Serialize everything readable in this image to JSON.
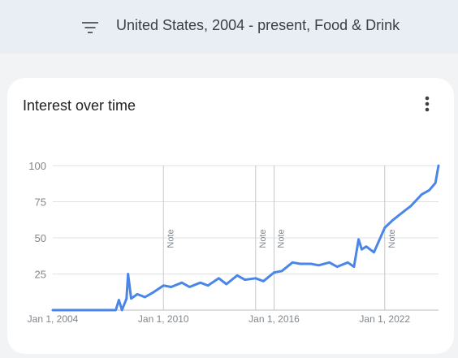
{
  "header": {
    "filter_text": "United States, 2004 - present, Food & Drink",
    "filter_icon": "filter-list-icon"
  },
  "card": {
    "title": "Interest over time",
    "menu_icon": "more-vert-icon"
  },
  "colors": {
    "line": "#4a86e8",
    "grid": "#e0e0e0",
    "axis_text": "#80868b",
    "note_line": "#c8c8c8"
  },
  "chart_data": {
    "type": "line",
    "title": "Interest over time",
    "xlabel": "",
    "ylabel": "",
    "x_range": [
      "2004-01",
      "2024-12"
    ],
    "ylim": [
      0,
      100
    ],
    "yticks": [
      25,
      50,
      75,
      100
    ],
    "xticks": [
      {
        "date": "2004-01",
        "label": "Jan 1, 2004"
      },
      {
        "date": "2010-01",
        "label": "Jan 1, 2010"
      },
      {
        "date": "2016-01",
        "label": "Jan 1, 2016"
      },
      {
        "date": "2022-01",
        "label": "Jan 1, 2022"
      }
    ],
    "grid": true,
    "notes": [
      {
        "date": "2010-01",
        "label": "Note"
      },
      {
        "date": "2015-01",
        "label": "Note"
      },
      {
        "date": "2016-01",
        "label": "Note"
      },
      {
        "date": "2022-01",
        "label": "Note"
      }
    ],
    "series": [
      {
        "points": [
          [
            "2004-01",
            0
          ],
          [
            "2007-06",
            0
          ],
          [
            "2007-08",
            7
          ],
          [
            "2007-10",
            0
          ],
          [
            "2008-01",
            8
          ],
          [
            "2008-02",
            25
          ],
          [
            "2008-04",
            8
          ],
          [
            "2008-08",
            11
          ],
          [
            "2009-01",
            9
          ],
          [
            "2009-06",
            12
          ],
          [
            "2010-01",
            17
          ],
          [
            "2010-06",
            16
          ],
          [
            "2011-01",
            19
          ],
          [
            "2011-06",
            16
          ],
          [
            "2012-01",
            19
          ],
          [
            "2012-06",
            17
          ],
          [
            "2013-01",
            22
          ],
          [
            "2013-06",
            18
          ],
          [
            "2014-01",
            24
          ],
          [
            "2014-06",
            21
          ],
          [
            "2015-01",
            22
          ],
          [
            "2015-06",
            20
          ],
          [
            "2016-01",
            26
          ],
          [
            "2016-06",
            27
          ],
          [
            "2017-01",
            33
          ],
          [
            "2017-06",
            32
          ],
          [
            "2018-01",
            32
          ],
          [
            "2018-06",
            31
          ],
          [
            "2019-01",
            33
          ],
          [
            "2019-06",
            30
          ],
          [
            "2020-01",
            33
          ],
          [
            "2020-05",
            30
          ],
          [
            "2020-08",
            49
          ],
          [
            "2020-10",
            42
          ],
          [
            "2021-01",
            44
          ],
          [
            "2021-06",
            40
          ],
          [
            "2022-01",
            57
          ],
          [
            "2022-06",
            62
          ],
          [
            "2023-01",
            68
          ],
          [
            "2023-06",
            72
          ],
          [
            "2024-01",
            80
          ],
          [
            "2024-06",
            83
          ],
          [
            "2024-10",
            88
          ],
          [
            "2024-12",
            100
          ]
        ]
      }
    ]
  }
}
